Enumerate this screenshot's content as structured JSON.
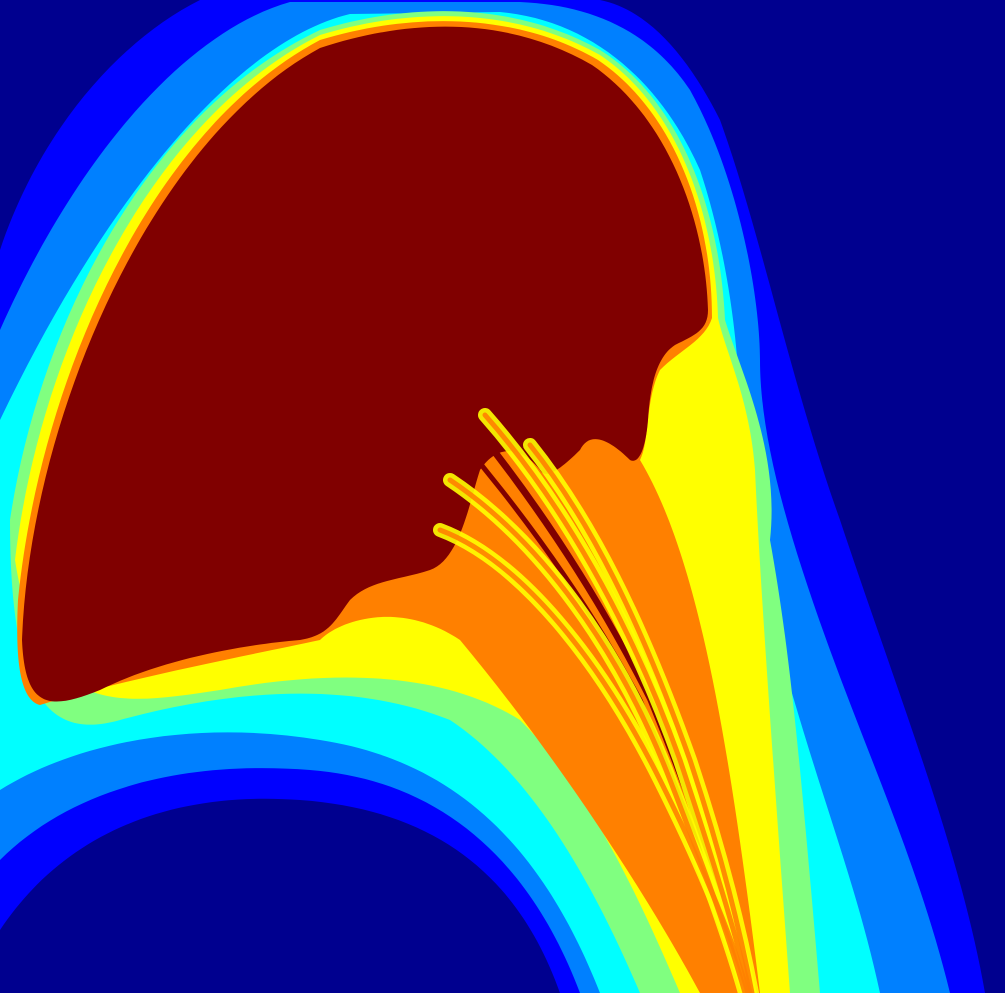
{
  "chart_data": {
    "type": "heatmap",
    "colormap": [
      "#00008f",
      "#0000ff",
      "#0080ff",
      "#00ffff",
      "#80ff80",
      "#ffff00",
      "#ff8000",
      "#ff0000",
      "#800000"
    ],
    "title": "",
    "xlabel": "",
    "ylabel": "",
    "axes_visible": false,
    "colorbar_visible": false,
    "legend": "none",
    "grid": false,
    "levels": 9
  }
}
